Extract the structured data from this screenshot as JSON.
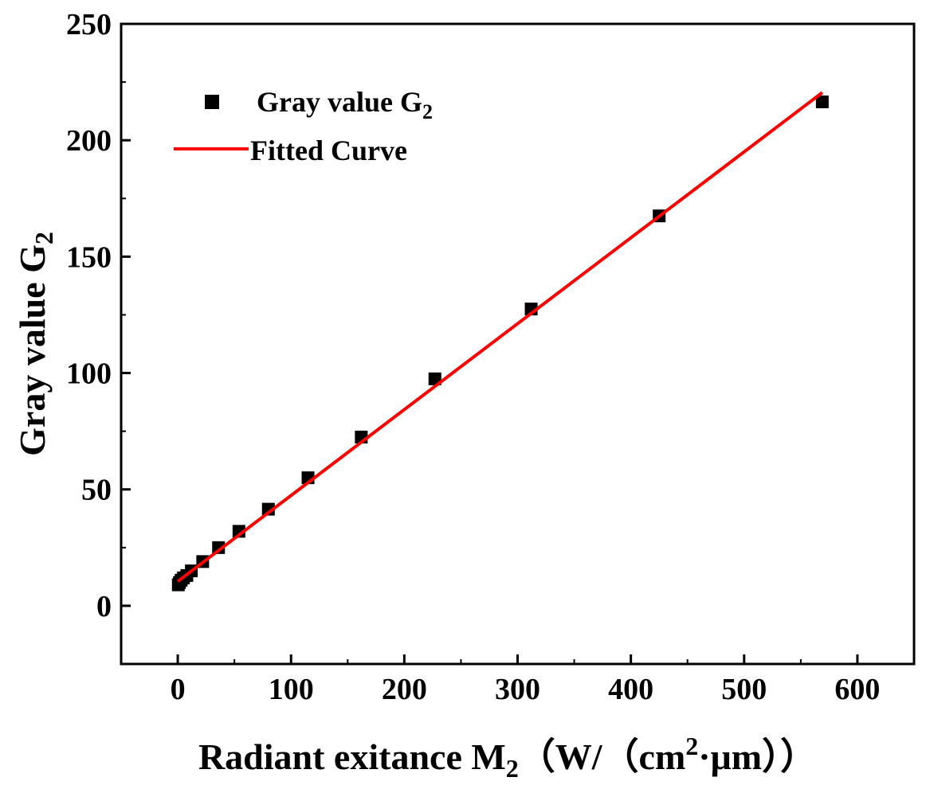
{
  "chart_data": {
    "type": "scatter",
    "title": "",
    "xlabel": {
      "main": "Radiant exitance M",
      "sub": "2",
      "unit_open": "（W/（cm",
      "sup": "2",
      "unit_close": "·μm））"
    },
    "ylabel": {
      "main": "Gray value G",
      "sub": "2"
    },
    "xlim": [
      -50,
      650
    ],
    "ylim": [
      -25,
      250
    ],
    "xticks": [
      0,
      100,
      200,
      300,
      400,
      500,
      600
    ],
    "yticks": [
      0,
      50,
      100,
      150,
      200,
      250
    ],
    "xtick_labels": [
      "0",
      "100",
      "200",
      "300",
      "400",
      "500",
      "600"
    ],
    "ytick_labels": [
      "0",
      "50",
      "100",
      "150",
      "200",
      "250"
    ],
    "grid": false,
    "legend": {
      "placement": "top-left",
      "items": [
        {
          "label": "Gray value G",
          "sub": "2",
          "marker": "square",
          "color": "#000000"
        },
        {
          "label": "Fitted Curve",
          "marker": "line",
          "color": "#ff0000"
        }
      ]
    },
    "series": [
      {
        "name": "Gray value G2",
        "kind": "scatter",
        "color": "#000000",
        "x": [
          0.5,
          1.5,
          3,
          5,
          8,
          12,
          22,
          36,
          54,
          80,
          115,
          162,
          227,
          312,
          425,
          569
        ],
        "y": [
          9,
          10,
          11,
          12,
          13,
          15,
          19,
          25,
          32,
          41.5,
          55,
          72.5,
          97.5,
          127.5,
          167.5,
          216.5
        ]
      },
      {
        "name": "Fitted Curve",
        "kind": "line",
        "color": "#ff0000",
        "x": [
          0,
          569
        ],
        "y": [
          10.5,
          220.5
        ]
      }
    ]
  }
}
